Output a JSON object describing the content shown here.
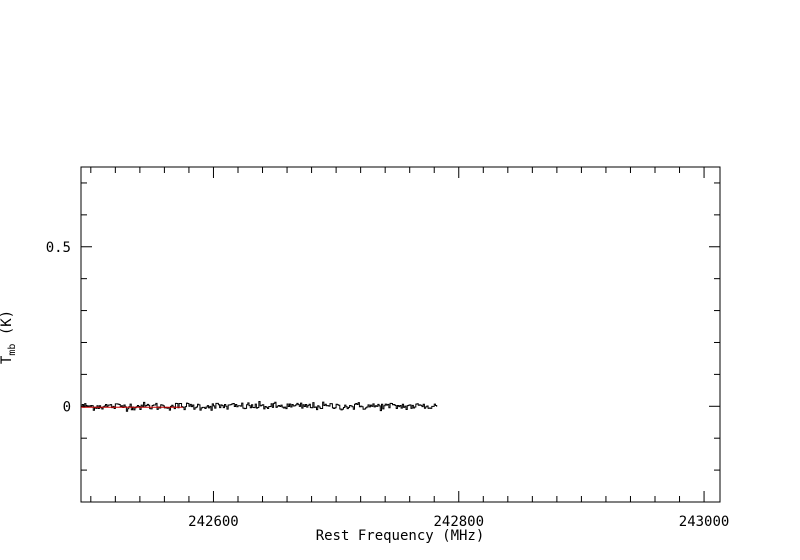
{
  "chart_data": {
    "type": "line",
    "title": "",
    "xlabel": "Rest Frequency (MHz)",
    "ylabel": "T",
    "ylabel_sub": "mb",
    "ylabel_unit": " (K)",
    "xlim": [
      242492,
      243013
    ],
    "ylim": [
      -0.3,
      0.75
    ],
    "x_major_ticks": [
      242600,
      242800,
      243000
    ],
    "x_minor_step": 20,
    "x_tick_labels": [
      "242600",
      "242800",
      "243000"
    ],
    "y_major_ticks": [
      0,
      0.5
    ],
    "y_minor_step": 0.1,
    "y_tick_labels": [
      "0",
      "0.5"
    ],
    "grid": false,
    "series": [
      {
        "x_start": 242492,
        "x_end": 242782,
        "x_step": 1,
        "color": "#000000",
        "noise_sigma": 0.006,
        "baseline": 0.0
      }
    ],
    "overlay": {
      "x_start": 242492,
      "x_end": 242575,
      "y": -0.003,
      "color": "#cc0000"
    }
  }
}
